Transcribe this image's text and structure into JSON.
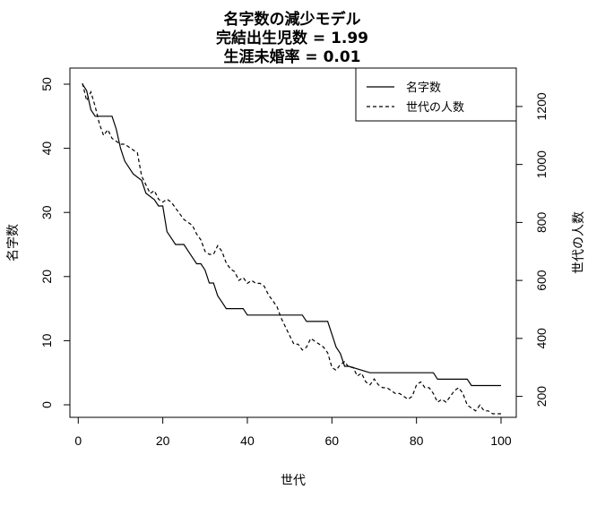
{
  "chart_data": {
    "type": "line",
    "title": [
      "名字数の減少モデル",
      "完結出生児数 = 1.99",
      "生涯未婚率 = 0.01"
    ],
    "xlabel": "世代",
    "ylabel_left": "名字数",
    "ylabel_right": "世代の人数",
    "xlim": [
      1,
      100
    ],
    "ylim_left": [
      0,
      50
    ],
    "ylim_right": [
      120,
      1280
    ],
    "x_ticks": [
      0,
      20,
      40,
      60,
      80,
      100
    ],
    "y_ticks_left": [
      0,
      10,
      20,
      30,
      40,
      50
    ],
    "y_ticks_right": [
      200,
      400,
      600,
      800,
      1000,
      1200
    ],
    "legend_position": "top-right",
    "legend": [
      {
        "label": "名字数",
        "style": "solid"
      },
      {
        "label": "世代の人数",
        "style": "dashed"
      }
    ],
    "series": [
      {
        "name": "名字数",
        "axis": "left",
        "style": "solid",
        "points": [
          [
            1,
            50
          ],
          [
            2,
            49
          ],
          [
            3,
            46
          ],
          [
            4,
            45
          ],
          [
            8,
            45
          ],
          [
            9,
            43
          ],
          [
            10,
            40
          ],
          [
            11,
            38
          ],
          [
            13,
            36
          ],
          [
            15,
            35
          ],
          [
            16,
            33
          ],
          [
            18,
            32
          ],
          [
            19,
            31
          ],
          [
            20,
            31
          ],
          [
            21,
            27
          ],
          [
            22,
            26
          ],
          [
            23,
            25
          ],
          [
            25,
            25
          ],
          [
            26,
            24
          ],
          [
            27,
            23
          ],
          [
            28,
            22
          ],
          [
            29,
            22
          ],
          [
            30,
            21
          ],
          [
            31,
            19
          ],
          [
            32,
            19
          ],
          [
            33,
            17
          ],
          [
            34,
            16
          ],
          [
            35,
            15
          ],
          [
            39,
            15
          ],
          [
            40,
            14
          ],
          [
            53,
            14
          ],
          [
            54,
            13
          ],
          [
            59,
            13
          ],
          [
            60,
            11
          ],
          [
            61,
            9
          ],
          [
            62,
            8
          ],
          [
            63,
            6
          ],
          [
            64,
            6
          ],
          [
            69,
            5
          ],
          [
            84,
            5
          ],
          [
            85,
            4
          ],
          [
            92,
            4
          ],
          [
            93,
            3
          ],
          [
            100,
            3
          ]
        ]
      },
      {
        "name": "世代の人数",
        "axis": "right",
        "style": "dashed",
        "points": [
          [
            1,
            1280
          ],
          [
            2,
            1220
          ],
          [
            3,
            1250
          ],
          [
            4,
            1200
          ],
          [
            5,
            1140
          ],
          [
            6,
            1100
          ],
          [
            7,
            1120
          ],
          [
            8,
            1090
          ],
          [
            9,
            1080
          ],
          [
            10,
            1070
          ],
          [
            11,
            1070
          ],
          [
            12,
            1060
          ],
          [
            13,
            1050
          ],
          [
            14,
            1040
          ],
          [
            15,
            960
          ],
          [
            16,
            930
          ],
          [
            17,
            900
          ],
          [
            18,
            910
          ],
          [
            19,
            880
          ],
          [
            20,
            870
          ],
          [
            21,
            880
          ],
          [
            22,
            870
          ],
          [
            23,
            850
          ],
          [
            24,
            830
          ],
          [
            25,
            810
          ],
          [
            26,
            800
          ],
          [
            27,
            790
          ],
          [
            28,
            760
          ],
          [
            29,
            740
          ],
          [
            30,
            700
          ],
          [
            31,
            690
          ],
          [
            32,
            690
          ],
          [
            33,
            720
          ],
          [
            34,
            700
          ],
          [
            35,
            660
          ],
          [
            36,
            640
          ],
          [
            37,
            630
          ],
          [
            38,
            600
          ],
          [
            39,
            610
          ],
          [
            40,
            590
          ],
          [
            41,
            600
          ],
          [
            42,
            590
          ],
          [
            43,
            590
          ],
          [
            44,
            580
          ],
          [
            45,
            550
          ],
          [
            46,
            530
          ],
          [
            47,
            510
          ],
          [
            48,
            470
          ],
          [
            49,
            440
          ],
          [
            50,
            410
          ],
          [
            51,
            380
          ],
          [
            52,
            380
          ],
          [
            53,
            360
          ],
          [
            54,
            370
          ],
          [
            55,
            400
          ],
          [
            56,
            390
          ],
          [
            57,
            380
          ],
          [
            58,
            370
          ],
          [
            59,
            350
          ],
          [
            60,
            300
          ],
          [
            61,
            290
          ],
          [
            62,
            310
          ],
          [
            63,
            320
          ],
          [
            64,
            300
          ],
          [
            65,
            300
          ],
          [
            66,
            270
          ],
          [
            67,
            280
          ],
          [
            68,
            250
          ],
          [
            69,
            240
          ],
          [
            70,
            260
          ],
          [
            71,
            240
          ],
          [
            72,
            230
          ],
          [
            73,
            230
          ],
          [
            74,
            220
          ],
          [
            75,
            210
          ],
          [
            76,
            210
          ],
          [
            77,
            200
          ],
          [
            78,
            190
          ],
          [
            79,
            200
          ],
          [
            80,
            240
          ],
          [
            81,
            250
          ],
          [
            82,
            230
          ],
          [
            83,
            230
          ],
          [
            84,
            210
          ],
          [
            85,
            180
          ],
          [
            86,
            190
          ],
          [
            87,
            180
          ],
          [
            88,
            200
          ],
          [
            89,
            220
          ],
          [
            90,
            230
          ],
          [
            91,
            210
          ],
          [
            92,
            170
          ],
          [
            93,
            160
          ],
          [
            94,
            150
          ],
          [
            95,
            170
          ],
          [
            96,
            150
          ],
          [
            97,
            150
          ],
          [
            98,
            140
          ],
          [
            99,
            140
          ],
          [
            100,
            140
          ]
        ]
      }
    ]
  }
}
